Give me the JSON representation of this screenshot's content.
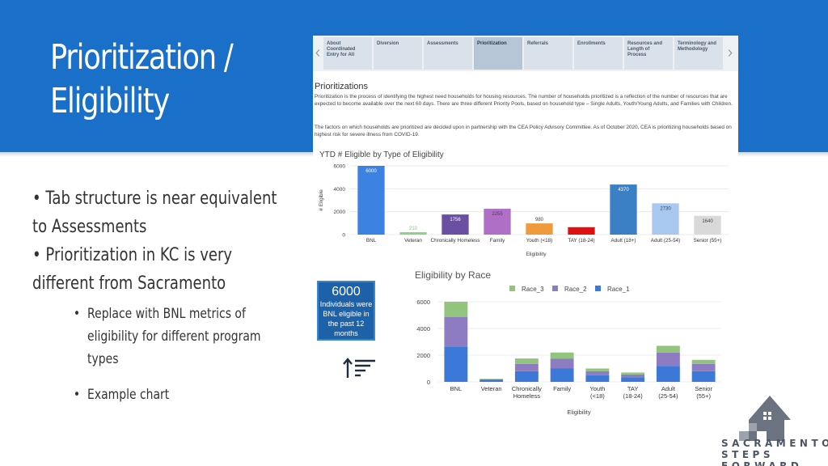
{
  "slide": {
    "title": "Prioritization /\nEligibility",
    "bullets": [
      "Tab structure is near equivalent",
      "to Assessments",
      "Prioritization in KC is very",
      "different from Sacramento"
    ],
    "sub_bullets": [
      "Replace with BNL metrics of",
      "eligibility for different program",
      "types",
      "Example chart"
    ],
    "bullet_marker": "•",
    "header_color": "#1a6fc9"
  },
  "dashboard": {
    "tabs": [
      {
        "label": "About Coordinated Entry for All",
        "active": false
      },
      {
        "label": "Diversion",
        "active": false
      },
      {
        "label": "Assessments",
        "active": false
      },
      {
        "label": "Prioritization",
        "active": true
      },
      {
        "label": "Referrals",
        "active": false
      },
      {
        "label": "Enrollments",
        "active": false
      },
      {
        "label": "Resources and Length of Process",
        "active": false
      },
      {
        "label": "Terminology and Methodology",
        "active": false
      }
    ],
    "prev_icon": "chevron-left-icon",
    "next_icon": "chevron-right-icon",
    "heading": "Prioritizations",
    "paragraph1": "Prioritization is the process of identifying the highest need households for housing resources. The number of households prioritized is a reflection of the number of resources that are expected to become available over the next 60 days. There are three different Priority Pools, based on household type – Single Adults, Youth/Young Adults, and Families with Children.",
    "paragraph2": "The factors on which households are prioritized are decided upon in partnership with the CEA Policy Advisory Committee. As of October 2020, CEA is prioritizing households based on highest risk for severe illness from COVID-19."
  },
  "callout": {
    "number": "6000",
    "text": "Individuals were BNL eligible in the past 12 months"
  },
  "sort_icon": "sort-descending-icon",
  "logo": {
    "icon": "house-steps-logo-icon",
    "text": "SACRAMENTO\nSTEPS FORWARD"
  },
  "chart_data": [
    {
      "type": "bar",
      "title": "YTD # Eligible by Type of Eligibility",
      "xlabel": "Eligibility",
      "ylabel": "# Eligible",
      "ylim": [
        0,
        6000
      ],
      "yticks": [
        0,
        2000,
        4000,
        6000
      ],
      "grid": true,
      "legend": "none",
      "categories": [
        "BNL",
        "Veteran",
        "Chronically Homeless",
        "Family",
        "Youth (<18)",
        "TAY (18-24)",
        "Adult (18+)",
        "Adult (25-54)",
        "Senior (55+)"
      ],
      "values": [
        6000,
        210,
        1756,
        2255,
        980,
        650,
        4370,
        2730,
        1640
      ],
      "value_labels": [
        "6000",
        "210",
        "1756",
        "2255",
        "980",
        "650",
        "4370",
        "2730",
        "1640"
      ],
      "colors": [
        "#3c82e0",
        "#8fd08a",
        "#6b4fa3",
        "#b06fc6",
        "#f09a3e",
        "#e01010",
        "#3b7fc4",
        "#a8c8ef",
        "#d9d9d9"
      ],
      "label_colors": [
        "#ffffff",
        "#7cc47a",
        "#ffffff",
        "#444444",
        "#444444",
        "#ffffff",
        "#ffffff",
        "#444444",
        "#444444"
      ]
    },
    {
      "type": "bar",
      "stacked": true,
      "title": "Eligibility by Race",
      "xlabel": "Eligibility",
      "ylabel": "",
      "ylim": [
        0,
        6000
      ],
      "yticks": [
        0,
        2000,
        4000,
        6000
      ],
      "grid": true,
      "legend": "top",
      "categories": [
        "BNL",
        "Veteran",
        "Chronically Homeless",
        "Family",
        "Youth (<18)",
        "TAY (18-24)",
        "Adult (25-54)",
        "Senior (55+)"
      ],
      "category_lines": [
        [
          "BNL"
        ],
        [
          "Veteran"
        ],
        [
          "Chronically",
          "Homeless"
        ],
        [
          "Family"
        ],
        [
          "Youth",
          "(<18)"
        ],
        [
          "TAY",
          "(18-24)"
        ],
        [
          "Adult",
          "(25-54)"
        ],
        [
          "Senior",
          "(55+)"
        ]
      ],
      "series": [
        {
          "name": "Race_1",
          "color": "#3b78d8",
          "values": [
            2650,
            150,
            800,
            1000,
            500,
            350,
            1200,
            800
          ]
        },
        {
          "name": "Race_2",
          "color": "#8e7cc3",
          "values": [
            2200,
            50,
            550,
            750,
            300,
            200,
            1000,
            550
          ]
        },
        {
          "name": "Race_3",
          "color": "#93c47d",
          "values": [
            1150,
            30,
            400,
            450,
            200,
            150,
            500,
            300
          ]
        }
      ],
      "legend_order": [
        "Race_3",
        "Race_2",
        "Race_1"
      ]
    }
  ]
}
